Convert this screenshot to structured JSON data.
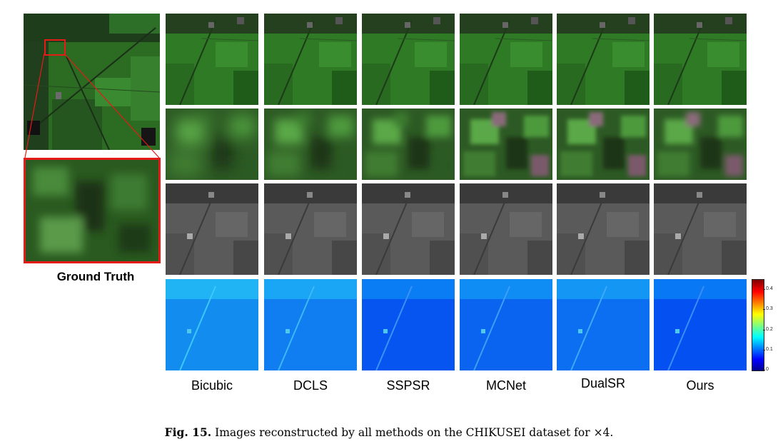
{
  "figure": {
    "ground_truth_label": "Ground Truth",
    "methods": [
      "Bicubic",
      "DCLS",
      "SSPSR",
      "MCNet",
      "DualSR",
      "Ours"
    ],
    "rows": [
      "RGB reconstruction",
      "zoomed detail",
      "band image",
      "error map"
    ],
    "colorbar": {
      "ticks": [
        "0",
        "0.1",
        "0.2",
        "0.3",
        "0.4"
      ],
      "min": 0,
      "max": 0.45,
      "colormap": "jet"
    },
    "caption": {
      "prefix": "Fig. 15.",
      "text": "Images reconstructed by all methods on the CHIKUSEI dataset for ×4."
    }
  },
  "colors": {
    "highlight_box": "#e41b17",
    "field_green": "#2f7a24",
    "dark_green": "#1d4a17",
    "band_gray": "#5a5a5a",
    "error_blue": "#1a3cf0"
  },
  "error_levels": [
    0.16,
    0.13,
    0.05,
    0.08,
    0.1,
    0.04
  ]
}
